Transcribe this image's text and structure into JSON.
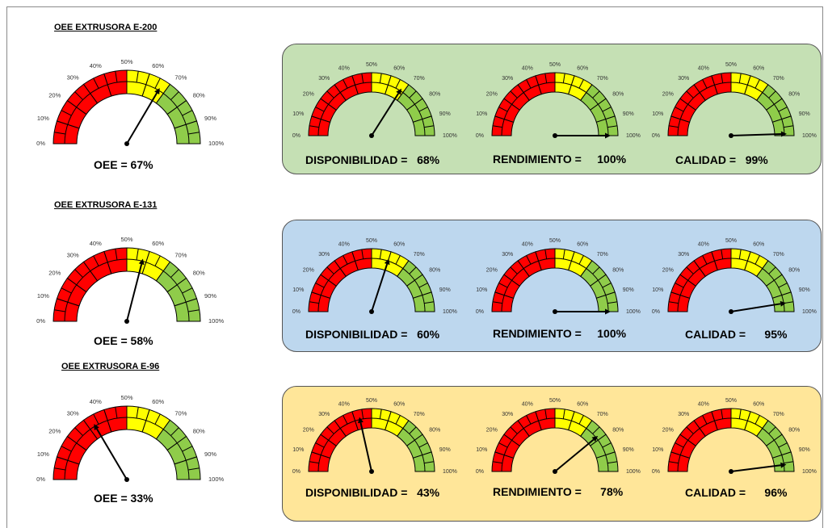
{
  "colors": {
    "red": "#ff0000",
    "yellow": "#ffff00",
    "green": "#8fcc4a",
    "panel_green": "#c5e0b4",
    "panel_blue": "#bdd7ee",
    "panel_yellow": "#ffe699"
  },
  "ticks": [
    "0%",
    "10%",
    "20%",
    "30%",
    "40%",
    "50%",
    "60%",
    "70%",
    "80%",
    "90%",
    "100%"
  ],
  "chart_data": [
    {
      "type": "gauge",
      "title": "OEE EXTRUSORA E-200",
      "range": [
        0,
        100
      ],
      "bands": [
        {
          "from": 0,
          "to": 50,
          "color": "red"
        },
        {
          "from": 50,
          "to": 70,
          "color": "yellow"
        },
        {
          "from": 70,
          "to": 100,
          "color": "green"
        }
      ],
      "gauges": [
        {
          "label": "OEE =",
          "value": 67,
          "value_text": "67%"
        },
        {
          "label": "DISPONIBILIDAD =",
          "value": 68,
          "value_text": "68%"
        },
        {
          "label": "RENDIMIENTO =",
          "value": 100,
          "value_text": "100%"
        },
        {
          "label": "CALIDAD =",
          "value": 99,
          "value_text": "99%"
        }
      ]
    },
    {
      "type": "gauge",
      "title": "OEE EXTRUSORA E-131",
      "range": [
        0,
        100
      ],
      "bands": [
        {
          "from": 0,
          "to": 50,
          "color": "red"
        },
        {
          "from": 50,
          "to": 70,
          "color": "yellow"
        },
        {
          "from": 70,
          "to": 100,
          "color": "green"
        }
      ],
      "gauges": [
        {
          "label": "OEE =",
          "value": 58,
          "value_text": "58%"
        },
        {
          "label": "DISPONIBILIDAD =",
          "value": 60,
          "value_text": "60%"
        },
        {
          "label": "RENDIMIENTO =",
          "value": 100,
          "value_text": "100%"
        },
        {
          "label": "CALIDAD =",
          "value": 95,
          "value_text": "95%"
        }
      ]
    },
    {
      "type": "gauge",
      "title": "OEE EXTRUSORA E-96",
      "range": [
        0,
        100
      ],
      "bands": [
        {
          "from": 0,
          "to": 50,
          "color": "red"
        },
        {
          "from": 50,
          "to": 70,
          "color": "yellow"
        },
        {
          "from": 70,
          "to": 100,
          "color": "green"
        }
      ],
      "gauges": [
        {
          "label": "OEE =",
          "value": 33,
          "value_text": "33%"
        },
        {
          "label": "DISPONIBILIDAD =",
          "value": 43,
          "value_text": "43%"
        },
        {
          "label": "RENDIMIENTO =",
          "value": 78,
          "value_text": "78%"
        },
        {
          "label": "CALIDAD =",
          "value": 96,
          "value_text": "96%"
        }
      ]
    }
  ]
}
